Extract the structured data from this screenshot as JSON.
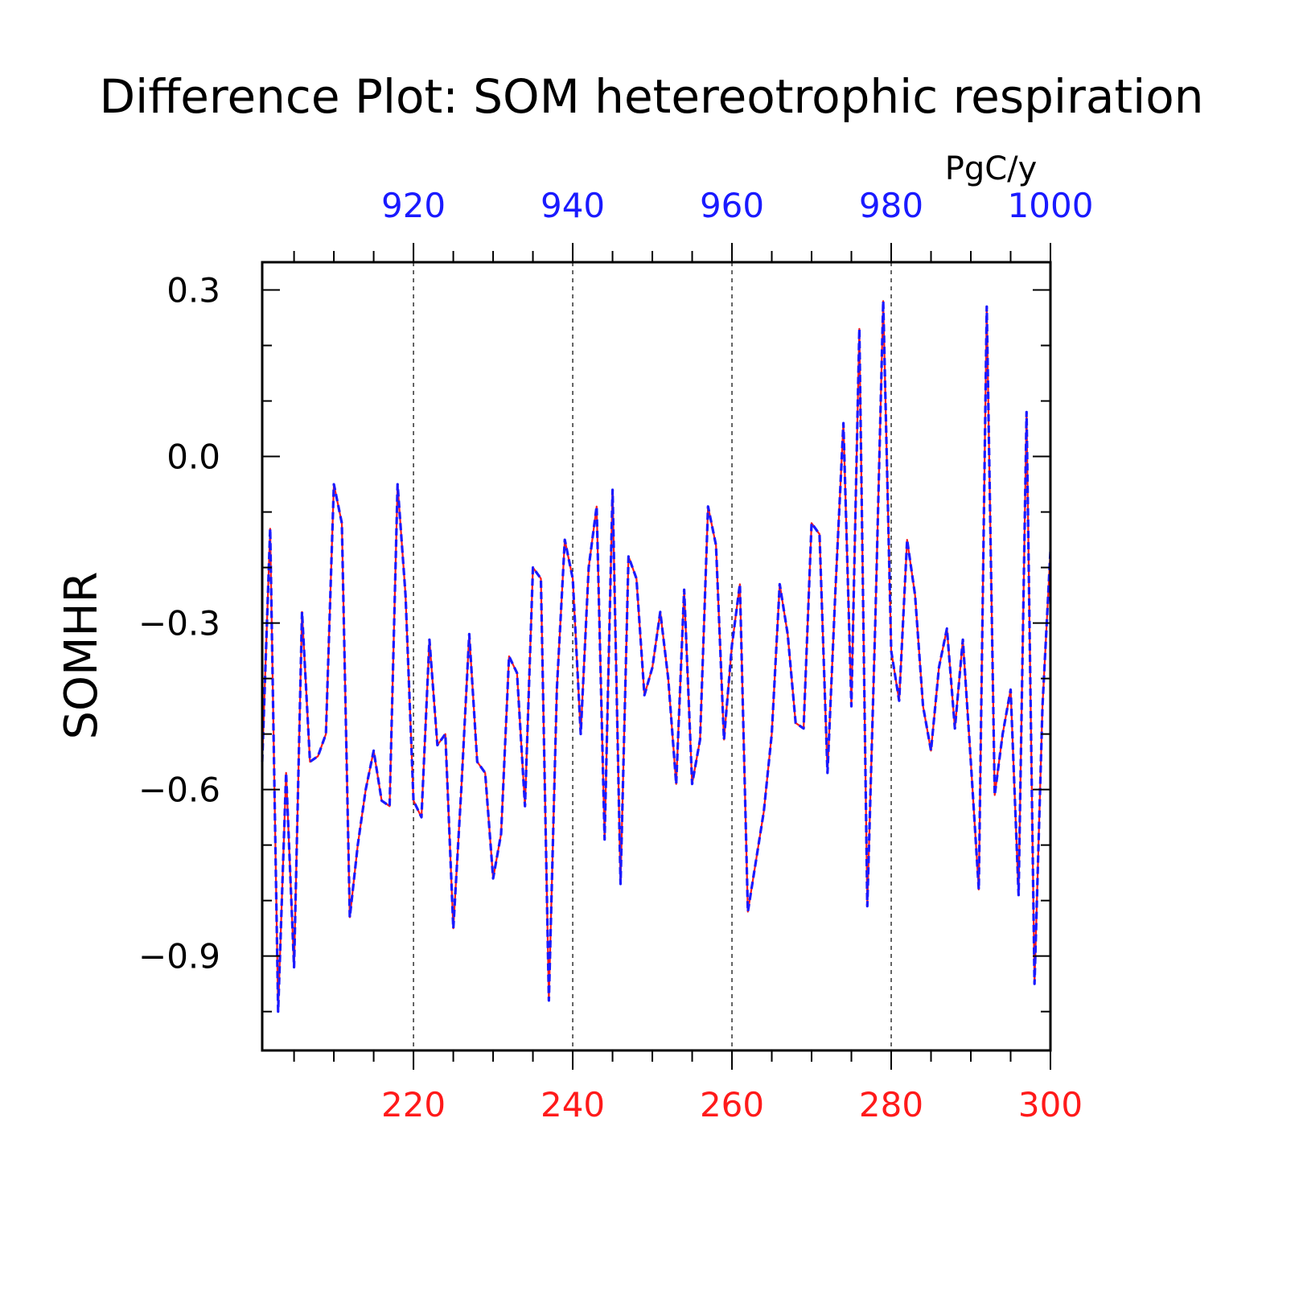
{
  "chart_data": {
    "type": "line",
    "title": "Difference Plot: SOM hetereotrophic respiration",
    "units": "PgC/y",
    "ylabel": "SOMHR",
    "ylim": [
      -1.07,
      0.35
    ],
    "yticks": [
      0.3,
      0.0,
      -0.3,
      -0.6,
      -0.9
    ],
    "ytick_labels": [
      "0.3",
      "0.0",
      "−0.3",
      "−0.6",
      "−0.9"
    ],
    "x_bottom": {
      "range": [
        201,
        300
      ],
      "ticks": [
        220,
        240,
        260,
        280,
        300
      ],
      "labels": [
        "220",
        "240",
        "260",
        "280",
        "300"
      ],
      "color": "#ff1a1a"
    },
    "x_top": {
      "range": [
        901,
        1000
      ],
      "ticks": [
        920,
        940,
        960,
        980,
        1000
      ],
      "labels": [
        "920",
        "940",
        "960",
        "980",
        "1000"
      ],
      "color": "#1a1aff"
    },
    "grid": "vertical-dashed",
    "series": [
      {
        "color": "#ff1a1a",
        "style": "solid"
      },
      {
        "color": "#1a1aff",
        "style": "dashed"
      }
    ],
    "x": [
      201,
      202,
      203,
      204,
      205,
      206,
      207,
      208,
      209,
      210,
      211,
      212,
      213,
      214,
      215,
      216,
      217,
      218,
      219,
      220,
      221,
      222,
      223,
      224,
      225,
      226,
      227,
      228,
      229,
      230,
      231,
      232,
      233,
      234,
      235,
      236,
      237,
      238,
      239,
      240,
      241,
      242,
      243,
      244,
      245,
      246,
      247,
      248,
      249,
      250,
      251,
      252,
      253,
      254,
      255,
      256,
      257,
      258,
      259,
      260,
      261,
      262,
      263,
      264,
      265,
      266,
      267,
      268,
      269,
      270,
      271,
      272,
      273,
      274,
      275,
      276,
      277,
      278,
      279,
      280,
      281,
      282,
      283,
      284,
      285,
      286,
      287,
      288,
      289,
      290,
      291,
      292,
      293,
      294,
      295,
      296,
      297,
      298,
      299,
      300
    ],
    "values": [
      -0.55,
      -0.13,
      -1.0,
      -0.57,
      -0.92,
      -0.28,
      -0.55,
      -0.54,
      -0.5,
      -0.05,
      -0.12,
      -0.83,
      -0.7,
      -0.6,
      -0.53,
      -0.62,
      -0.63,
      -0.05,
      -0.25,
      -0.62,
      -0.65,
      -0.33,
      -0.52,
      -0.5,
      -0.85,
      -0.6,
      -0.32,
      -0.55,
      -0.57,
      -0.76,
      -0.68,
      -0.36,
      -0.39,
      -0.63,
      -0.2,
      -0.22,
      -0.98,
      -0.42,
      -0.15,
      -0.22,
      -0.5,
      -0.2,
      -0.09,
      -0.69,
      -0.06,
      -0.77,
      -0.18,
      -0.22,
      -0.43,
      -0.38,
      -0.28,
      -0.4,
      -0.59,
      -0.24,
      -0.59,
      -0.51,
      -0.09,
      -0.16,
      -0.51,
      -0.34,
      -0.23,
      -0.82,
      -0.73,
      -0.64,
      -0.5,
      -0.23,
      -0.32,
      -0.48,
      -0.49,
      -0.12,
      -0.14,
      -0.57,
      -0.24,
      0.06,
      -0.45,
      0.23,
      -0.81,
      -0.3,
      0.28,
      -0.35,
      -0.44,
      -0.15,
      -0.25,
      -0.45,
      -0.53,
      -0.38,
      -0.31,
      -0.49,
      -0.33,
      -0.55,
      -0.78,
      0.27,
      -0.61,
      -0.5,
      -0.42,
      -0.79,
      0.08,
      -0.95,
      -0.45,
      -0.17
    ]
  }
}
